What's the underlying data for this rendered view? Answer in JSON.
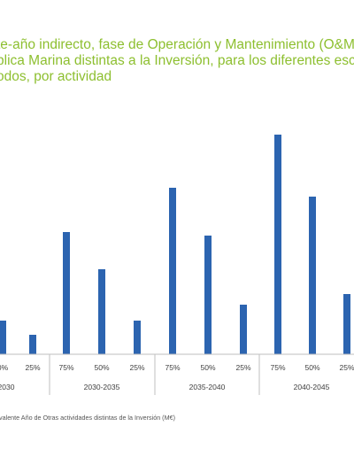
{
  "title_lines": [
    "te-año indirecto, fase de Operación y Mantenimiento (O&M",
    "blica Marina distintas a la Inversión, para los diferentes esce",
    "odos, por actividad"
  ],
  "footnote": "valente Año de Otras actividades distintas de la Inversión (M€)",
  "colors": {
    "bar": "#2c64b0",
    "title": "#8dbf2f",
    "axis": "#bfbfbf",
    "text": "#404040"
  },
  "chart_data": {
    "type": "bar",
    "categories": [
      "0%",
      "25%",
      "75%",
      "50%",
      "25%",
      "75%",
      "50%",
      "25%",
      "75%",
      "50%",
      "25%"
    ],
    "groups": [
      {
        "label": "2030",
        "categories": [
          "0%",
          "25%"
        ]
      },
      {
        "label": "2030-2035",
        "categories": [
          "75%",
          "50%",
          "25%"
        ]
      },
      {
        "label": "2035-2040",
        "categories": [
          "75%",
          "50%",
          "25%"
        ]
      },
      {
        "label": "2040-2045",
        "categories": [
          "75%",
          "50%",
          "25%"
        ]
      }
    ],
    "series": [
      {
        "values": [
          19,
          11,
          69,
          48,
          19,
          94,
          67,
          28,
          124,
          89,
          34
        ]
      }
    ],
    "ylim": [
      0,
      140
    ]
  }
}
